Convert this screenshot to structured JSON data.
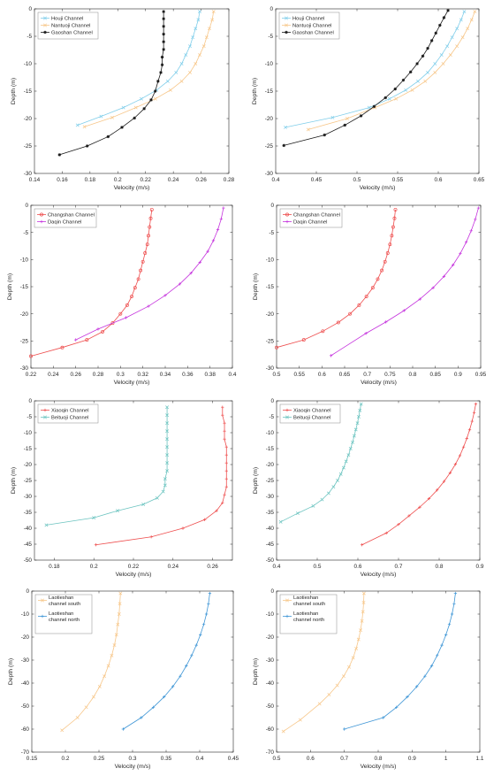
{
  "colors": {
    "sky": "#80ceea",
    "peach": "#f7c78a",
    "black": "#1a1a1a",
    "red": "#ee4e4e",
    "magenta": "#c533dd",
    "teal": "#6cc4c0",
    "blue": "#3f96d6",
    "axis": "#262626",
    "legend_box": "#8a8a8a"
  },
  "chart_data": [
    {
      "type": "line",
      "xlabel": "Velocity (m/s)",
      "ylabel": "Depth (m)",
      "xlim": [
        0.14,
        0.28
      ],
      "ylim": [
        -30,
        0
      ],
      "xticks": [
        "0.14",
        "0.16",
        "0.18",
        "0.2",
        "0.22",
        "0.24",
        "0.26",
        "0.28"
      ],
      "yticks": [
        "-30",
        "-25",
        "-20",
        "-15",
        "-10",
        "-5",
        "0"
      ],
      "legend": "top-left",
      "series": [
        {
          "name": "Houji Channel",
          "color": "#80ceea",
          "marker": "x",
          "x": [
            0.259,
            0.258,
            0.256,
            0.254,
            0.252,
            0.249,
            0.246,
            0.242,
            0.236,
            0.228,
            0.217,
            0.204,
            0.188,
            0.171
          ],
          "y": [
            -0.5,
            -2,
            -3.6,
            -5.2,
            -6.8,
            -8.4,
            -10,
            -11.6,
            -13.2,
            -14.8,
            -16.4,
            -18,
            -19.6,
            -21.2
          ]
        },
        {
          "name": "Nantuoji Channel",
          "color": "#f7c78a",
          "marker": "x",
          "x": [
            0.269,
            0.268,
            0.266,
            0.264,
            0.262,
            0.259,
            0.256,
            0.252,
            0.246,
            0.238,
            0.227,
            0.213,
            0.196,
            0.176
          ],
          "y": [
            -0.5,
            -2,
            -3.6,
            -5.2,
            -6.8,
            -8.4,
            -10,
            -11.6,
            -13.2,
            -14.8,
            -16.4,
            -18,
            -19.8,
            -21.5
          ]
        },
        {
          "name": "Gaoshan Channel",
          "color": "#1a1a1a",
          "marker": "*",
          "x": [
            0.233,
            0.233,
            0.233,
            0.233,
            0.233,
            0.233,
            0.232,
            0.232,
            0.231,
            0.229,
            0.227,
            0.224,
            0.219,
            0.212,
            0.203,
            0.193,
            0.178,
            0.158
          ],
          "y": [
            -0.5,
            -1.8,
            -3.2,
            -4.6,
            -6,
            -7.4,
            -8.8,
            -10.2,
            -11.6,
            -13.2,
            -15,
            -16.6,
            -18.2,
            -19.9,
            -21.6,
            -23.3,
            -25,
            -26.6
          ]
        }
      ]
    },
    {
      "type": "line",
      "xlabel": "Velocity (m/s)",
      "ylabel": "Depth (m)",
      "xlim": [
        0.4,
        0.65
      ],
      "ylim": [
        -30,
        0
      ],
      "xticks": [
        "0.4",
        "0.45",
        "0.5",
        "0.55",
        "0.6",
        "0.65"
      ],
      "yticks": [
        "-30",
        "-25",
        "-20",
        "-15",
        "-10",
        "-5",
        "0"
      ],
      "legend": "top-left",
      "series": [
        {
          "name": "Houji Channel",
          "color": "#80ceea",
          "marker": "x",
          "x": [
            0.632,
            0.628,
            0.623,
            0.617,
            0.611,
            0.604,
            0.596,
            0.587,
            0.575,
            0.56,
            0.54,
            0.515,
            0.47,
            0.412
          ],
          "y": [
            -0.5,
            -2,
            -3.6,
            -5.2,
            -6.8,
            -8.4,
            -10,
            -11.6,
            -13.2,
            -14.8,
            -16.4,
            -18,
            -19.8,
            -21.6
          ]
        },
        {
          "name": "Nantuoji Channel",
          "color": "#f7c78a",
          "marker": "x",
          "x": [
            0.645,
            0.641,
            0.636,
            0.63,
            0.623,
            0.615,
            0.606,
            0.596,
            0.584,
            0.568,
            0.548,
            0.522,
            0.488,
            0.44
          ],
          "y": [
            -0.5,
            -2,
            -3.6,
            -5.2,
            -6.8,
            -8.4,
            -10,
            -11.6,
            -13.2,
            -14.8,
            -16.4,
            -18,
            -20,
            -22
          ]
        },
        {
          "name": "Gaoshan Channel",
          "color": "#1a1a1a",
          "marker": "*",
          "x": [
            0.612,
            0.607,
            0.602,
            0.597,
            0.592,
            0.587,
            0.581,
            0.574,
            0.566,
            0.557,
            0.547,
            0.535,
            0.521,
            0.505,
            0.485,
            0.46,
            0.41
          ],
          "y": [
            -0.3,
            -1.6,
            -3,
            -4.4,
            -5.8,
            -7.2,
            -8.6,
            -10,
            -11.5,
            -13,
            -14.6,
            -16.2,
            -17.8,
            -19.5,
            -21.2,
            -23,
            -24.9
          ]
        }
      ]
    },
    {
      "type": "line",
      "xlabel": "Velocity (m/s)",
      "ylabel": "Depth (m)",
      "xlim": [
        0.22,
        0.4
      ],
      "ylim": [
        -30,
        0
      ],
      "xticks": [
        "0.22",
        "0.24",
        "0.26",
        "0.28",
        "0.3",
        "0.32",
        "0.34",
        "0.36",
        "0.38",
        "0.4"
      ],
      "yticks": [
        "-30",
        "-25",
        "-20",
        "-15",
        "-10",
        "-5",
        "0"
      ],
      "legend": "top-left",
      "series": [
        {
          "name": "Changshan Channel",
          "color": "#ee4e4e",
          "marker": "o",
          "x": [
            0.328,
            0.327,
            0.326,
            0.325,
            0.324,
            0.322,
            0.32,
            0.318,
            0.316,
            0.313,
            0.31,
            0.306,
            0.3,
            0.293,
            0.284,
            0.27,
            0.248,
            0.22
          ],
          "y": [
            -0.8,
            -2.4,
            -4,
            -5.6,
            -7.2,
            -8.8,
            -10.4,
            -12,
            -13.6,
            -15.2,
            -16.8,
            -18.4,
            -20,
            -21.7,
            -23.3,
            -24.8,
            -26.2,
            -27.8
          ]
        },
        {
          "name": "Daqin Channel",
          "color": "#c533dd",
          "marker": "+",
          "x": [
            0.392,
            0.39,
            0.387,
            0.383,
            0.378,
            0.371,
            0.363,
            0.353,
            0.34,
            0.325,
            0.305,
            0.28,
            0.26
          ],
          "y": [
            -0.5,
            -2.5,
            -4.5,
            -6.5,
            -8.5,
            -10.5,
            -12.5,
            -14.5,
            -16.6,
            -18.6,
            -20.7,
            -22.8,
            -24.8
          ]
        }
      ]
    },
    {
      "type": "line",
      "xlabel": "Velocity (m/s)",
      "ylabel": "Depth (m)",
      "xlim": [
        0.5,
        0.95
      ],
      "ylim": [
        -30,
        0
      ],
      "xticks": [
        "0.5",
        "0.55",
        "0.6",
        "0.65",
        "0.7",
        "0.75",
        "0.8",
        "0.85",
        "0.9",
        "0.95"
      ],
      "yticks": [
        "-30",
        "-25",
        "-20",
        "-15",
        "-10",
        "-5",
        "0"
      ],
      "legend": "top-left",
      "series": [
        {
          "name": "Changshan Channel",
          "color": "#ee4e4e",
          "marker": "o",
          "x": [
            0.762,
            0.76,
            0.757,
            0.754,
            0.75,
            0.745,
            0.739,
            0.732,
            0.723,
            0.712,
            0.698,
            0.682,
            0.662,
            0.636,
            0.602,
            0.56,
            0.5
          ],
          "y": [
            -0.8,
            -2.4,
            -4,
            -5.6,
            -7.2,
            -8.8,
            -10.4,
            -12,
            -13.6,
            -15.2,
            -16.8,
            -18.4,
            -20,
            -21.6,
            -23.2,
            -24.8,
            -26.2
          ]
        },
        {
          "name": "Daqin Channel",
          "color": "#c533dd",
          "marker": "+",
          "x": [
            0.945,
            0.938,
            0.929,
            0.918,
            0.905,
            0.889,
            0.869,
            0.845,
            0.816,
            0.781,
            0.741,
            0.697,
            0.62
          ],
          "y": [
            -0.5,
            -2.6,
            -4.7,
            -6.8,
            -8.9,
            -11,
            -13.1,
            -15.2,
            -17.3,
            -19.4,
            -21.5,
            -23.6,
            -27.7
          ]
        }
      ]
    },
    {
      "type": "line",
      "xlabel": "Velocity (m/s)",
      "ylabel": "Depth (m)",
      "xlim": [
        0.17,
        0.27
      ],
      "ylim": [
        -50,
        0
      ],
      "xticks": [
        "0.18",
        "0.2",
        "0.22",
        "0.24",
        "0.26"
      ],
      "yticks": [
        "-50",
        "-45",
        "-40",
        "-35",
        "-30",
        "-25",
        "-20",
        "-15",
        "-10",
        "-5",
        "0"
      ],
      "legend": "top-left",
      "series": [
        {
          "name": "Xiaoqin Channel",
          "color": "#ee4e4e",
          "marker": "+",
          "x": [
            0.265,
            0.265,
            0.266,
            0.266,
            0.266,
            0.267,
            0.267,
            0.267,
            0.267,
            0.267,
            0.267,
            0.266,
            0.265,
            0.262,
            0.256,
            0.245,
            0.229,
            0.201
          ],
          "y": [
            -2,
            -4.5,
            -7,
            -9.5,
            -12,
            -14.5,
            -17,
            -19.5,
            -22,
            -24.5,
            -27,
            -29.5,
            -32,
            -34.5,
            -37.3,
            -40,
            -42.7,
            -45.2
          ]
        },
        {
          "name": "Beituoji Channel",
          "color": "#6cc4c0",
          "marker": "x",
          "x": [
            0.237,
            0.237,
            0.237,
            0.237,
            0.237,
            0.237,
            0.237,
            0.237,
            0.237,
            0.236,
            0.236,
            0.235,
            0.232,
            0.225,
            0.212,
            0.2,
            0.176
          ],
          "y": [
            -2,
            -4.5,
            -7,
            -9.5,
            -12,
            -14.5,
            -17,
            -19.5,
            -22,
            -24.5,
            -26.5,
            -28.5,
            -30.5,
            -32.5,
            -34.5,
            -36.7,
            -39
          ]
        }
      ]
    },
    {
      "type": "line",
      "xlabel": "Velocity (m/s)",
      "ylabel": "Depth (m)",
      "xlim": [
        0.4,
        0.9
      ],
      "ylim": [
        -50,
        0
      ],
      "xticks": [
        "0.4",
        "0.5",
        "0.6",
        "0.7",
        "0.8",
        "0.9"
      ],
      "yticks": [
        "-50",
        "-45",
        "-40",
        "-35",
        "-30",
        "-25",
        "-20",
        "-15",
        "-10",
        "-5",
        "0"
      ],
      "legend": "top-left",
      "series": [
        {
          "name": "Xiaoqin Channel",
          "color": "#ee4e4e",
          "marker": "+",
          "x": [
            0.89,
            0.886,
            0.881,
            0.875,
            0.868,
            0.86,
            0.851,
            0.84,
            0.827,
            0.812,
            0.795,
            0.775,
            0.752,
            0.726,
            0.7,
            0.67,
            0.61
          ],
          "y": [
            -1,
            -3.7,
            -6.4,
            -9.1,
            -11.8,
            -14.5,
            -17.2,
            -19.9,
            -22.6,
            -25.3,
            -28,
            -30.7,
            -33.4,
            -36.1,
            -38.8,
            -41.5,
            -45.2
          ]
        },
        {
          "name": "Beituoji Channel",
          "color": "#6cc4c0",
          "marker": "x",
          "x": [
            0.608,
            0.605,
            0.602,
            0.599,
            0.595,
            0.591,
            0.587,
            0.582,
            0.577,
            0.571,
            0.565,
            0.558,
            0.55,
            0.54,
            0.528,
            0.512,
            0.49,
            0.452,
            0.41
          ],
          "y": [
            -1,
            -3,
            -5,
            -7,
            -9,
            -11,
            -13,
            -15,
            -17,
            -19,
            -21,
            -23,
            -25,
            -27,
            -29,
            -31,
            -33,
            -35.3,
            -38
          ]
        }
      ]
    },
    {
      "type": "line",
      "xlabel": "Velocity (m/s)",
      "ylabel": "Depth (m)",
      "xlim": [
        0.15,
        0.45
      ],
      "ylim": [
        -70,
        0
      ],
      "xticks": [
        "0.15",
        "0.2",
        "0.25",
        "0.3",
        "0.35",
        "0.4",
        "0.45"
      ],
      "yticks": [
        "-70",
        "-60",
        "-50",
        "-40",
        "-30",
        "-20",
        "-10",
        "0"
      ],
      "legend": "top-left",
      "series": [
        {
          "name": "Laotieshan channel south",
          "color": "#f7c78a",
          "marker": "x",
          "x": [
            0.282,
            0.281,
            0.28,
            0.278,
            0.276,
            0.273,
            0.269,
            0.264,
            0.258,
            0.251,
            0.242,
            0.231,
            0.218,
            0.195
          ],
          "y": [
            -1,
            -5.5,
            -10,
            -14.5,
            -19,
            -23.5,
            -28,
            -32.5,
            -37,
            -41.5,
            -46,
            -50.5,
            -55,
            -60.5
          ]
        },
        {
          "name": "Laotieshan channel north",
          "color": "#3f96d6",
          "marker": "+",
          "x": [
            0.415,
            0.413,
            0.41,
            0.406,
            0.401,
            0.395,
            0.388,
            0.38,
            0.371,
            0.36,
            0.347,
            0.331,
            0.313,
            0.286
          ],
          "y": [
            -1,
            -5.5,
            -10,
            -14.5,
            -19,
            -23.5,
            -28,
            -32.5,
            -37,
            -41.5,
            -46,
            -50.5,
            -55,
            -60
          ]
        }
      ]
    },
    {
      "type": "line",
      "xlabel": "Velocity (m/s)",
      "ylabel": "Depth (m)",
      "xlim": [
        0.5,
        1.1
      ],
      "ylim": [
        -70,
        0
      ],
      "xticks": [
        "0.5",
        "0.6",
        "0.7",
        "0.8",
        "0.9",
        "1",
        "1.1"
      ],
      "yticks": [
        "-70",
        "-60",
        "-50",
        "-40",
        "-30",
        "-20",
        "-10",
        "0"
      ],
      "legend": "top-left",
      "series": [
        {
          "name": "Laotieshan channel south",
          "color": "#f7c78a",
          "marker": "x",
          "x": [
            0.758,
            0.757,
            0.755,
            0.752,
            0.748,
            0.742,
            0.735,
            0.726,
            0.714,
            0.698,
            0.679,
            0.655,
            0.627,
            0.57,
            0.52
          ],
          "y": [
            -1,
            -5,
            -9,
            -13,
            -17,
            -21,
            -25,
            -29,
            -33,
            -37,
            -41,
            -45,
            -49,
            -56,
            -61
          ]
        },
        {
          "name": "Laotieshan channel north",
          "color": "#3f96d6",
          "marker": "+",
          "x": [
            1.028,
            1.024,
            1.018,
            1.01,
            1.0,
            0.988,
            0.974,
            0.958,
            0.938,
            0.914,
            0.886,
            0.854,
            0.815,
            0.7
          ],
          "y": [
            -1,
            -5.5,
            -10,
            -14.5,
            -19,
            -23.5,
            -28,
            -32.5,
            -37,
            -41.5,
            -46,
            -50.5,
            -55,
            -60
          ]
        }
      ]
    }
  ]
}
